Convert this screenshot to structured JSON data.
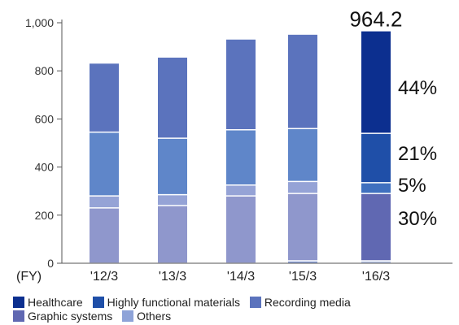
{
  "chart_data": {
    "type": "bar",
    "stacked": true,
    "categories": [
      "'12/3",
      "'13/3",
      "'14/3",
      "'15/3",
      "'16/3"
    ],
    "x_axis_note": "(FY)",
    "ylim": [
      0,
      1000
    ],
    "yticks": [
      "0",
      "200",
      "400",
      "600",
      "800",
      "1,000"
    ],
    "ytick_values": [
      0,
      200,
      400,
      600,
      800,
      1000
    ],
    "grid": false,
    "legend_position": "bottom",
    "series": [
      {
        "name": "Others",
        "color": "#8ea3d8",
        "values": [
          0,
          0,
          0,
          10,
          10
        ]
      },
      {
        "name": "Graphic systems",
        "color": "#8f97cc",
        "values": [
          230,
          240,
          280,
          280,
          280
        ]
      },
      {
        "name": "Recording media",
        "color": "#95a3d6",
        "values": [
          50,
          45,
          45,
          50,
          45
        ]
      },
      {
        "name": "Highly functional materials",
        "color": "#5f86c9",
        "values": [
          265,
          235,
          230,
          220,
          205
        ]
      },
      {
        "name": "Healthcare",
        "color": "#5b73bd",
        "values": [
          285,
          335,
          375,
          390,
          424.2
        ]
      }
    ],
    "highlight": {
      "category_index": 4,
      "colors": {
        "Others": "#b9c6e8",
        "Graphic systems": "#6068b2",
        "Recording media": "#3f70bf",
        "Highly functional materials": "#1f4fa8",
        "Healthcare": "#0c2f8f"
      }
    },
    "total_label": "964.2",
    "annotations": [
      "44%",
      "21%",
      "5%",
      "30%"
    ]
  },
  "legend": {
    "items": [
      {
        "label": "Healthcare",
        "color": "#0c2f8f"
      },
      {
        "label": "Highly functional materials",
        "color": "#1f4fa8"
      },
      {
        "label": "Recording media",
        "color": "#5b73bd"
      },
      {
        "label": "Graphic systems",
        "color": "#6068b2"
      },
      {
        "label": "Others",
        "color": "#8ea3d8"
      }
    ]
  }
}
